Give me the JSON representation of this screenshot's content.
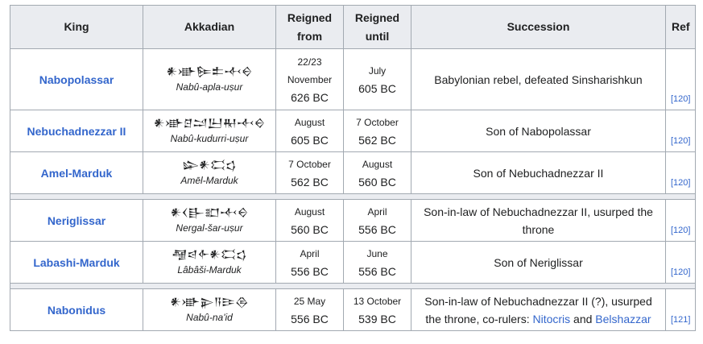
{
  "headers": {
    "king": "King",
    "akkadian": "Akkadian",
    "reigned_from_1": "Reigned",
    "reigned_from_2": "from",
    "reigned_until_1": "Reigned",
    "reigned_until_2": "until",
    "succession": "Succession",
    "ref": "Ref"
  },
  "rows": [
    {
      "king": "Nabopolassar",
      "cuneiform": "𒀭𒀝𒌉𒉺𒋾𒀪",
      "transliteration": "Nabû-apla-uṣur",
      "from_day": "22/23",
      "from_month": "November",
      "from_year": "626 BC",
      "until_day": "July",
      "until_year": "605 BC",
      "succession": "Babylonian rebel, defeated Sinsharishkun",
      "ref": "[120]"
    },
    {
      "king": "Nebuchadnezzar II",
      "cuneiform": "𒀭𒀝𒆪𒁺𒌨𒊑𒋾𒀪",
      "transliteration": "Nabû-kudurri-uṣur",
      "from_day": "August",
      "from_year": "605 BC",
      "until_day": "7 October",
      "until_year": "562 BC",
      "succession": "Son of Nabopolassar",
      "ref": "[120]"
    },
    {
      "king": "Amel-Marduk",
      "cuneiform": "𒇽𒀭𒀫𒌓",
      "transliteration": "Amēl-Marduk",
      "from_day": "7 October",
      "from_year": "562 BC",
      "until_day": "August",
      "until_year": "560 BC",
      "succession": "Son of Nebuchadnezzar II",
      "ref": "[120]"
    },
    {
      "king": "Neriglissar",
      "cuneiform": "𒀭𒌋𒃲𒊬𒋾𒀪",
      "transliteration": "Nergal-šar-uṣur",
      "from_day": "August",
      "from_year": "560 BC",
      "until_day": "April",
      "until_year": "556 BC",
      "succession_1": "Son-in-law of Nebuchadnezzar II, usurped the",
      "succession_2": "throne",
      "ref": "[120]"
    },
    {
      "king": "Labashi-Marduk",
      "cuneiform": "𒆷𒁀𒅆𒀭𒀫𒌓",
      "transliteration": "Lâbâši-Marduk",
      "from_day": "April",
      "from_year": "556 BC",
      "until_day": "June",
      "until_year": "556 BC",
      "succession": "Son of Neriglissar",
      "ref": "[120]"
    },
    {
      "king": "Nabonidus",
      "cuneiform": "𒀭𒀝𒉌𒀀𒄿𒁲",
      "transliteration": "Nabû-na'id",
      "from_day": "25 May",
      "from_year": "556 BC",
      "until_day": "13 October",
      "until_year": "539 BC",
      "succession_1": "Son-in-law of Nebuchadnezzar II (?), usurped",
      "succession_2_pre": "the throne, co-rulers:",
      "link_1": "Nitocris",
      "and": "and",
      "link_2": "Belshazzar",
      "ref": "[121]"
    }
  ]
}
